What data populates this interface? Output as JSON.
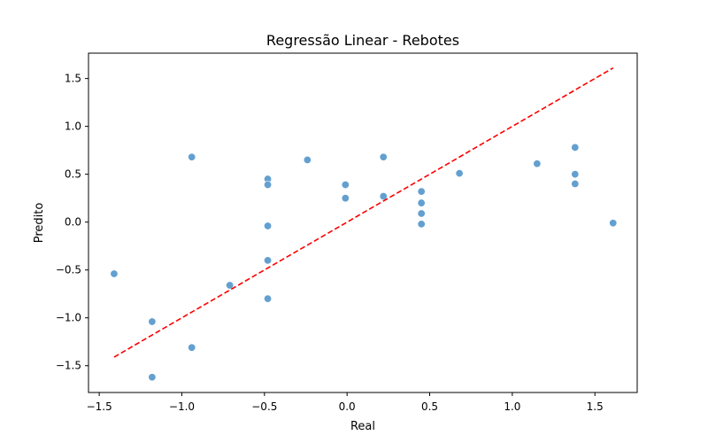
{
  "chart_data": {
    "type": "scatter",
    "title": "Regressão Linear - Rebotes",
    "xlabel": "Real",
    "ylabel": "Predito",
    "xlim": [
      -1.565,
      1.756
    ],
    "ylim": [
      -1.78,
      1.765
    ],
    "xticks": [
      {
        "value": -1.5,
        "label": "−1.5"
      },
      {
        "value": -1.0,
        "label": "−1.0"
      },
      {
        "value": -0.5,
        "label": "−0.5"
      },
      {
        "value": 0.0,
        "label": "0.0"
      },
      {
        "value": 0.5,
        "label": "0.5"
      },
      {
        "value": 1.0,
        "label": "1.0"
      },
      {
        "value": 1.5,
        "label": "1.5"
      }
    ],
    "yticks": [
      {
        "value": -1.5,
        "label": "−1.5"
      },
      {
        "value": -1.0,
        "label": "−1.0"
      },
      {
        "value": -0.5,
        "label": "−0.5"
      },
      {
        "value": 0.0,
        "label": "0.0"
      },
      {
        "value": 0.5,
        "label": "0.5"
      },
      {
        "value": 1.0,
        "label": "1.0"
      },
      {
        "value": 1.5,
        "label": "1.5"
      }
    ],
    "grid": false,
    "point_color": "#5b9bcd",
    "points": [
      {
        "x": -1.41,
        "y": -0.54
      },
      {
        "x": -1.18,
        "y": -1.04
      },
      {
        "x": -1.18,
        "y": -1.62
      },
      {
        "x": -0.94,
        "y": 0.68
      },
      {
        "x": -0.94,
        "y": -1.31
      },
      {
        "x": -0.71,
        "y": -0.66
      },
      {
        "x": -0.48,
        "y": 0.45
      },
      {
        "x": -0.48,
        "y": 0.39
      },
      {
        "x": -0.48,
        "y": -0.04
      },
      {
        "x": -0.48,
        "y": -0.4
      },
      {
        "x": -0.48,
        "y": -0.8
      },
      {
        "x": -0.24,
        "y": 0.65
      },
      {
        "x": -0.01,
        "y": 0.39
      },
      {
        "x": -0.01,
        "y": 0.25
      },
      {
        "x": 0.22,
        "y": 0.68
      },
      {
        "x": 0.22,
        "y": 0.27
      },
      {
        "x": 0.45,
        "y": 0.32
      },
      {
        "x": 0.45,
        "y": 0.2
      },
      {
        "x": 0.45,
        "y": 0.09
      },
      {
        "x": 0.45,
        "y": -0.02
      },
      {
        "x": 0.68,
        "y": 0.51
      },
      {
        "x": 1.15,
        "y": 0.61
      },
      {
        "x": 1.38,
        "y": 0.78
      },
      {
        "x": 1.38,
        "y": 0.5
      },
      {
        "x": 1.38,
        "y": 0.4
      },
      {
        "x": 1.61,
        "y": -0.01
      }
    ],
    "reference_line": {
      "style": "dashed",
      "color": "#ff0000",
      "from": {
        "x": -1.41,
        "y": -1.41
      },
      "to": {
        "x": 1.61,
        "y": 1.61
      }
    }
  }
}
